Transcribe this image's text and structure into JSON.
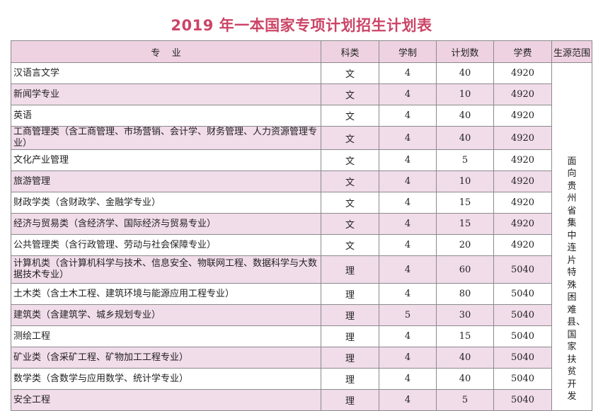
{
  "title": "2019 年一本国家专项计划招生计划表",
  "headers": {
    "major": "专    业",
    "category": "科类",
    "duration": "学制",
    "plan": "计划数",
    "tuition": "学费",
    "region": "生源范围"
  },
  "region_text": "面向贵州省集中连片特殊困难县、国家扶贫开发",
  "rows": [
    {
      "major": "汉语言文学",
      "category": "文",
      "duration": "4",
      "plan": "40",
      "tuition": "4920"
    },
    {
      "major": "新闻学专业",
      "category": "文",
      "duration": "4",
      "plan": "10",
      "tuition": "4920"
    },
    {
      "major": "英语",
      "category": "文",
      "duration": "4",
      "plan": "40",
      "tuition": "4920"
    },
    {
      "major": "工商管理类（含工商管理、市场营销、会计学、财务管理、人力资源管理专业）",
      "category": "文",
      "duration": "4",
      "plan": "40",
      "tuition": "4920"
    },
    {
      "major": "文化产业管理",
      "category": "文",
      "duration": "4",
      "plan": "5",
      "tuition": "4920"
    },
    {
      "major": "旅游管理",
      "category": "文",
      "duration": "4",
      "plan": "10",
      "tuition": "4920"
    },
    {
      "major": "财政学类（含财政学、金融学专业）",
      "category": "文",
      "duration": "4",
      "plan": "15",
      "tuition": "4920"
    },
    {
      "major": "经济与贸易类（含经济学、国际经济与贸易专业）",
      "category": "文",
      "duration": "4",
      "plan": "15",
      "tuition": "4920"
    },
    {
      "major": "公共管理类（含行政管理、劳动与社会保障专业）",
      "category": "文",
      "duration": "4",
      "plan": "20",
      "tuition": "4920"
    },
    {
      "major": "计算机类（含计算机科学与技术、信息安全、物联网工程、数据科学与大数据技术专业）",
      "category": "理",
      "duration": "4",
      "plan": "60",
      "tuition": "5040"
    },
    {
      "major": "土木类（含土木工程、建筑环境与能源应用工程专业）",
      "category": "理",
      "duration": "4",
      "plan": "80",
      "tuition": "5040"
    },
    {
      "major": "建筑类（含建筑学、城乡规划专业）",
      "category": "理",
      "duration": "5",
      "plan": "30",
      "tuition": "5040"
    },
    {
      "major": "测绘工程",
      "category": "理",
      "duration": "4",
      "plan": "15",
      "tuition": "5040"
    },
    {
      "major": "矿业类（含采矿工程、矿物加工工程专业）",
      "category": "理",
      "duration": "4",
      "plan": "40",
      "tuition": "5040"
    },
    {
      "major": "数学类（含数学与应用数学、统计学专业）",
      "category": "理",
      "duration": "4",
      "plan": "40",
      "tuition": "5040"
    },
    {
      "major": "安全工程",
      "category": "理",
      "duration": "4",
      "plan": "5",
      "tuition": "5040"
    }
  ]
}
